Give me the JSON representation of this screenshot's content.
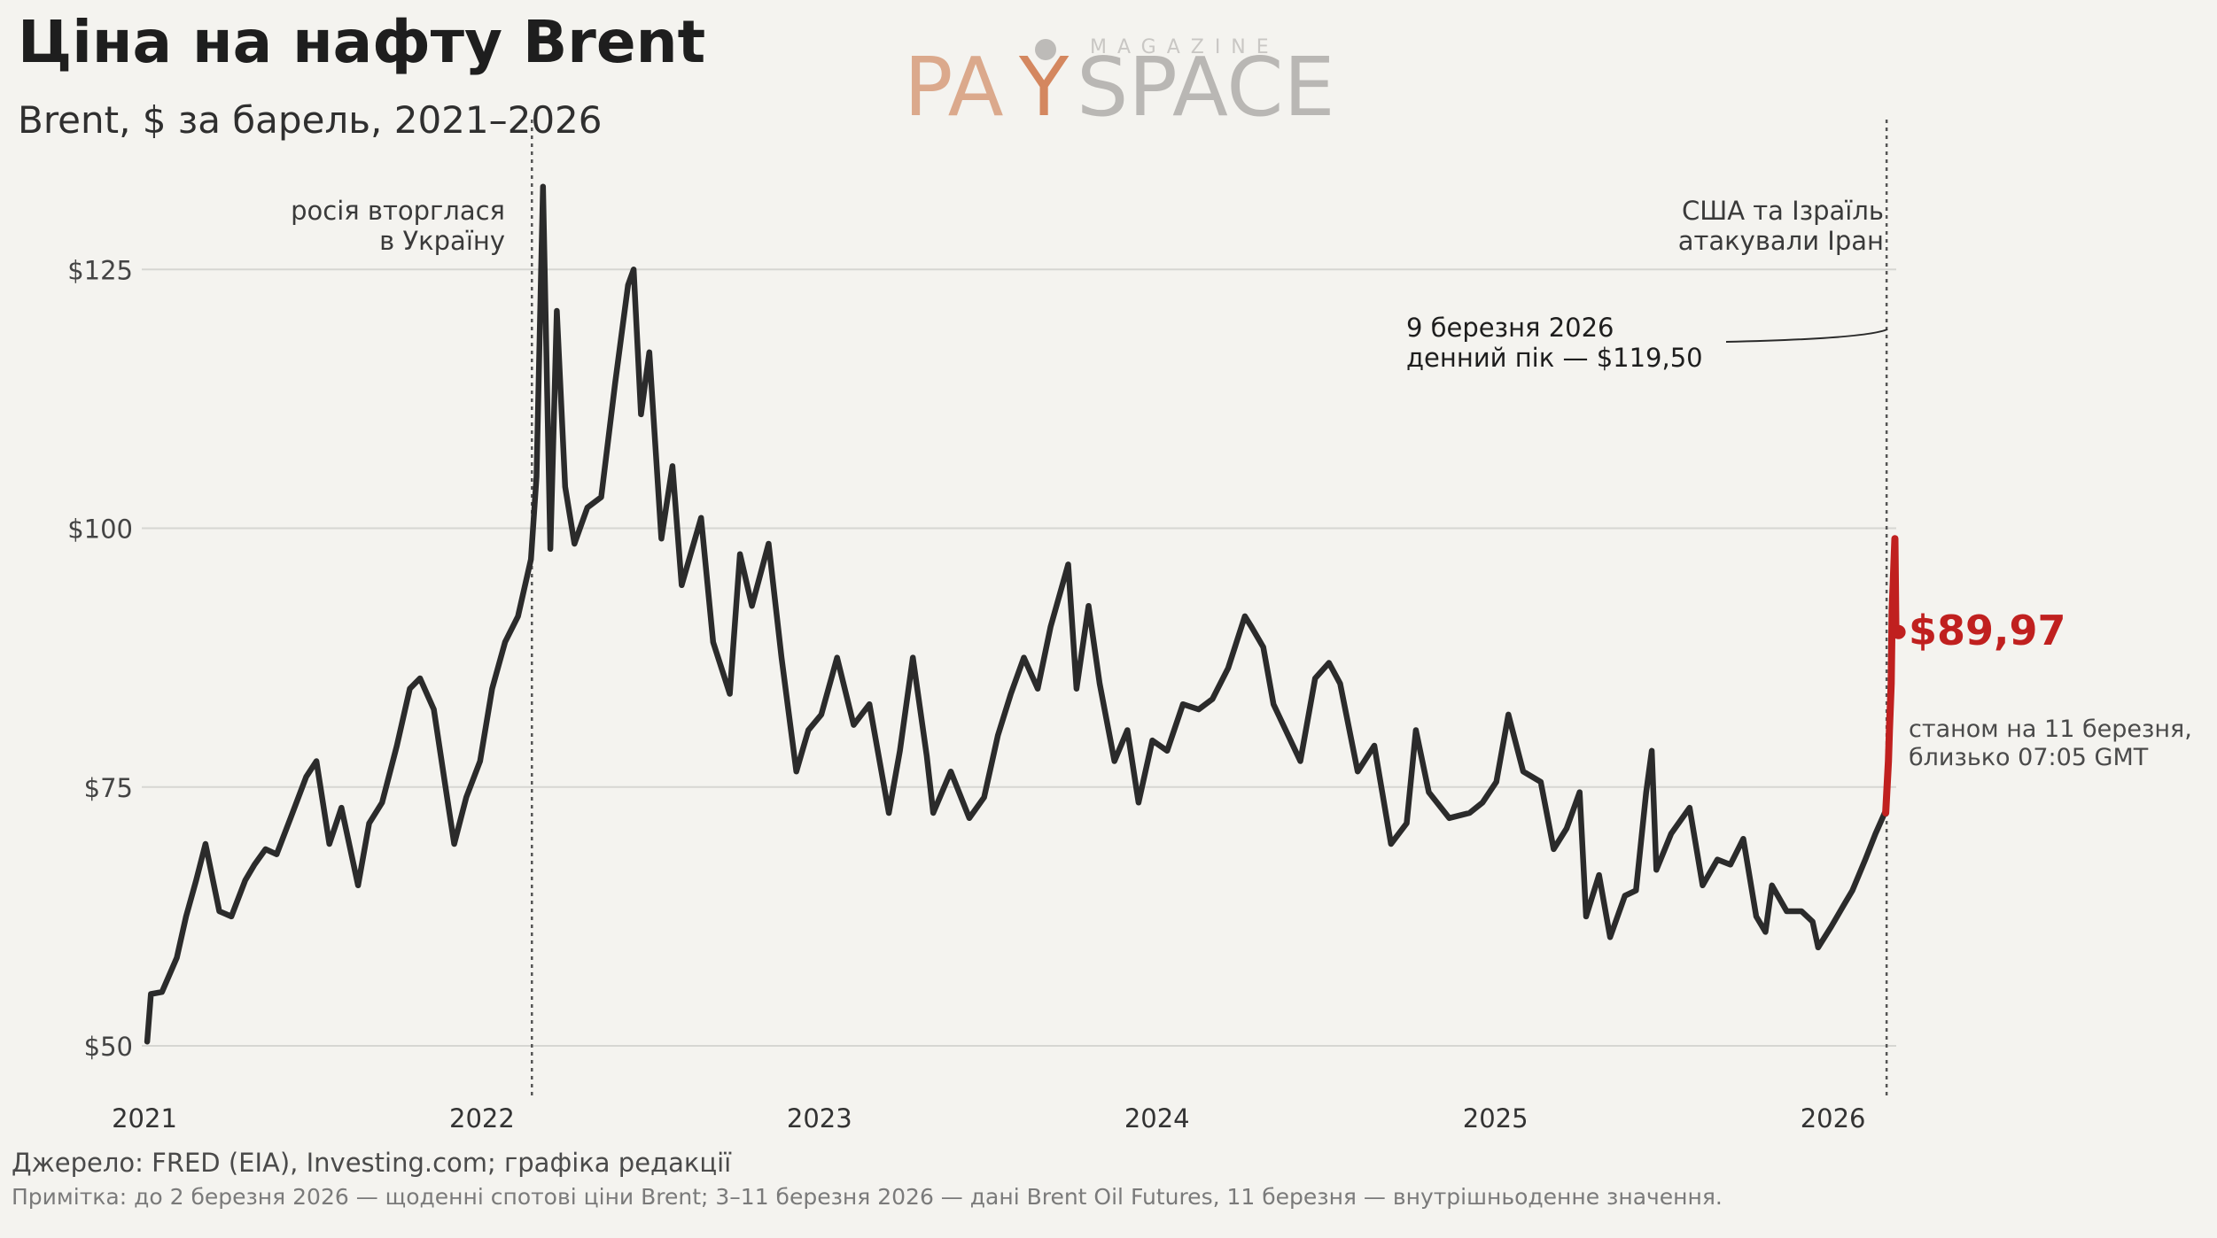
{
  "header": {
    "title": "Ціна на нафту Brent",
    "subtitle": "Brent, $ за барель, 2021–2026"
  },
  "logo": {
    "main_left": "PA",
    "main_right": "SPACE",
    "small": "MAGAZINE"
  },
  "colors": {
    "background": "#f4f3ef",
    "line": "#2b2b2b",
    "highlight": "#c0201f",
    "grid": "#d6d6d2",
    "logo_main": "#dba98c",
    "logo_secondary": "#b9b7b4"
  },
  "annotations": {
    "invasion": [
      "росія вторглася",
      "в Україну"
    ],
    "iran": [
      "США та Ізраїль",
      "атакували Іран"
    ],
    "peak": [
      "9 березня 2026",
      "денний пік — $119,50"
    ],
    "last_value": "$89,97",
    "last_note": [
      "станом на 11 березня,",
      "близько 07:05 GMT"
    ]
  },
  "footer": {
    "source": "Джерело: FRED (EIA), Investing.com; графіка редакції",
    "note": "Примітка: до 2 березня 2026 — щоденні спотові ціни Brent; 3–11 березня 2026 — дані Brent Oil Futures, 11 березня — внутрішньоденне значення."
  },
  "chart_data": {
    "type": "line",
    "title": "Ціна на нафту Brent",
    "subtitle": "Brent, $ за барель, 2021–2026",
    "xlabel": "",
    "ylabel": "",
    "x_ticks": [
      "2021",
      "2022",
      "2023",
      "2024",
      "2025",
      "2026"
    ],
    "y_ticks": [
      50,
      75,
      100,
      125
    ],
    "y_tick_labels": [
      "$50",
      "$75",
      "$100",
      "$125"
    ],
    "ylim": [
      45,
      134
    ],
    "xlim": [
      "2021-01-01",
      "2026-03-20"
    ],
    "grid": "horizontal",
    "events": [
      {
        "date": "2022-02-24",
        "label": "росія вторглася в Україну"
      },
      {
        "date": "2026-02-28",
        "label": "США та Ізраїль атакували Іран"
      }
    ],
    "series": [
      {
        "values": [
          [
            "2021-01-04",
            50.4
          ],
          [
            "2021-01-08",
            55.0
          ],
          [
            "2021-01-20",
            55.2
          ],
          [
            "2021-02-05",
            58.5
          ],
          [
            "2021-02-15",
            62.5
          ],
          [
            "2021-02-26",
            66.0
          ],
          [
            "2021-03-08",
            69.5
          ],
          [
            "2021-03-23",
            63.0
          ],
          [
            "2021-04-05",
            62.5
          ],
          [
            "2021-04-20",
            66.0
          ],
          [
            "2021-04-30",
            67.5
          ],
          [
            "2021-05-12",
            69.0
          ],
          [
            "2021-05-24",
            68.5
          ],
          [
            "2021-06-08",
            72.0
          ],
          [
            "2021-06-25",
            76.0
          ],
          [
            "2021-07-06",
            77.5
          ],
          [
            "2021-07-20",
            69.5
          ],
          [
            "2021-08-02",
            73.0
          ],
          [
            "2021-08-20",
            65.5
          ],
          [
            "2021-09-01",
            71.5
          ],
          [
            "2021-09-15",
            73.5
          ],
          [
            "2021-10-01",
            79.0
          ],
          [
            "2021-10-15",
            84.5
          ],
          [
            "2021-10-26",
            85.5
          ],
          [
            "2021-11-10",
            82.5
          ],
          [
            "2021-11-26",
            73.0
          ],
          [
            "2021-12-02",
            69.5
          ],
          [
            "2021-12-15",
            74.0
          ],
          [
            "2021-12-30",
            77.5
          ],
          [
            "2022-01-12",
            84.5
          ],
          [
            "2022-01-26",
            89.0
          ],
          [
            "2022-02-09",
            91.5
          ],
          [
            "2022-02-23",
            97.0
          ],
          [
            "2022-03-01",
            105.0
          ],
          [
            "2022-03-08",
            133.0
          ],
          [
            "2022-03-16",
            98.0
          ],
          [
            "2022-03-23",
            121.0
          ],
          [
            "2022-04-01",
            104.0
          ],
          [
            "2022-04-11",
            98.5
          ],
          [
            "2022-04-25",
            102.0
          ],
          [
            "2022-05-10",
            103.0
          ],
          [
            "2022-05-25",
            114.0
          ],
          [
            "2022-06-08",
            123.5
          ],
          [
            "2022-06-14",
            125.0
          ],
          [
            "2022-06-22",
            111.0
          ],
          [
            "2022-07-01",
            117.0
          ],
          [
            "2022-07-14",
            99.0
          ],
          [
            "2022-07-26",
            106.0
          ],
          [
            "2022-08-05",
            94.5
          ],
          [
            "2022-08-26",
            101.0
          ],
          [
            "2022-09-08",
            89.0
          ],
          [
            "2022-09-26",
            84.0
          ],
          [
            "2022-10-07",
            97.5
          ],
          [
            "2022-10-20",
            92.5
          ],
          [
            "2022-11-07",
            98.5
          ],
          [
            "2022-11-21",
            87.5
          ],
          [
            "2022-12-07",
            76.5
          ],
          [
            "2022-12-20",
            80.5
          ],
          [
            "2023-01-03",
            82.0
          ],
          [
            "2023-01-20",
            87.5
          ],
          [
            "2023-02-07",
            81.0
          ],
          [
            "2023-02-24",
            83.0
          ],
          [
            "2023-03-17",
            72.5
          ],
          [
            "2023-03-29",
            78.5
          ],
          [
            "2023-04-12",
            87.5
          ],
          [
            "2023-04-27",
            78.0
          ],
          [
            "2023-05-04",
            72.5
          ],
          [
            "2023-05-23",
            76.5
          ],
          [
            "2023-06-12",
            72.0
          ],
          [
            "2023-06-28",
            74.0
          ],
          [
            "2023-07-13",
            80.0
          ],
          [
            "2023-07-27",
            84.0
          ],
          [
            "2023-08-10",
            87.5
          ],
          [
            "2023-08-25",
            84.5
          ],
          [
            "2023-09-08",
            90.5
          ],
          [
            "2023-09-27",
            96.5
          ],
          [
            "2023-10-06",
            84.5
          ],
          [
            "2023-10-19",
            92.5
          ],
          [
            "2023-10-31",
            85.0
          ],
          [
            "2023-11-16",
            77.5
          ],
          [
            "2023-11-30",
            80.5
          ],
          [
            "2023-12-12",
            73.5
          ],
          [
            "2023-12-27",
            79.5
          ],
          [
            "2024-01-12",
            78.5
          ],
          [
            "2024-01-29",
            83.0
          ],
          [
            "2024-02-15",
            82.5
          ],
          [
            "2024-03-01",
            83.5
          ],
          [
            "2024-03-18",
            86.5
          ],
          [
            "2024-04-05",
            91.5
          ],
          [
            "2024-04-12",
            90.5
          ],
          [
            "2024-04-25",
            88.5
          ],
          [
            "2024-05-06",
            83.0
          ],
          [
            "2024-06-04",
            77.5
          ],
          [
            "2024-06-20",
            85.5
          ],
          [
            "2024-07-05",
            87.0
          ],
          [
            "2024-07-17",
            85.0
          ],
          [
            "2024-08-05",
            76.5
          ],
          [
            "2024-08-23",
            79.0
          ],
          [
            "2024-09-10",
            69.5
          ],
          [
            "2024-09-27",
            71.5
          ],
          [
            "2024-10-07",
            80.5
          ],
          [
            "2024-10-21",
            74.5
          ],
          [
            "2024-11-12",
            72.0
          ],
          [
            "2024-12-04",
            72.5
          ],
          [
            "2024-12-18",
            73.5
          ],
          [
            "2025-01-02",
            75.5
          ],
          [
            "2025-01-15",
            82.0
          ],
          [
            "2025-01-31",
            76.5
          ],
          [
            "2025-02-19",
            75.5
          ],
          [
            "2025-03-05",
            69.0
          ],
          [
            "2025-03-19",
            71.0
          ],
          [
            "2025-04-02",
            74.5
          ],
          [
            "2025-04-09",
            62.5
          ],
          [
            "2025-04-23",
            66.5
          ],
          [
            "2025-05-05",
            60.5
          ],
          [
            "2025-05-21",
            64.5
          ],
          [
            "2025-06-02",
            65.0
          ],
          [
            "2025-06-13",
            74.5
          ],
          [
            "2025-06-19",
            78.5
          ],
          [
            "2025-06-24",
            67.0
          ],
          [
            "2025-07-10",
            70.5
          ],
          [
            "2025-07-30",
            73.0
          ],
          [
            "2025-08-13",
            65.5
          ],
          [
            "2025-08-29",
            68.0
          ],
          [
            "2025-09-12",
            67.5
          ],
          [
            "2025-09-26",
            70.0
          ],
          [
            "2025-10-10",
            62.5
          ],
          [
            "2025-10-20",
            61.0
          ],
          [
            "2025-10-27",
            65.5
          ],
          [
            "2025-11-12",
            63.0
          ],
          [
            "2025-11-28",
            63.0
          ],
          [
            "2025-12-10",
            62.0
          ],
          [
            "2025-12-16",
            59.5
          ],
          [
            "2025-12-30",
            61.5
          ],
          [
            "2026-01-12",
            63.5
          ],
          [
            "2026-01-22",
            65.0
          ],
          [
            "2026-02-05",
            68.0
          ],
          [
            "2026-02-16",
            70.5
          ],
          [
            "2026-02-26",
            72.5
          ]
        ]
      },
      {
        "values": [
          [
            "2026-02-27",
            72.5
          ],
          [
            "2026-03-02",
            77.5
          ],
          [
            "2026-03-03",
            80.5
          ],
          [
            "2026-03-05",
            85.0
          ],
          [
            "2026-03-06",
            92.0
          ],
          [
            "2026-03-09",
            99.0
          ],
          [
            "2026-03-10",
            90.0
          ],
          [
            "2026-03-11",
            89.97
          ]
        ]
      }
    ]
  }
}
